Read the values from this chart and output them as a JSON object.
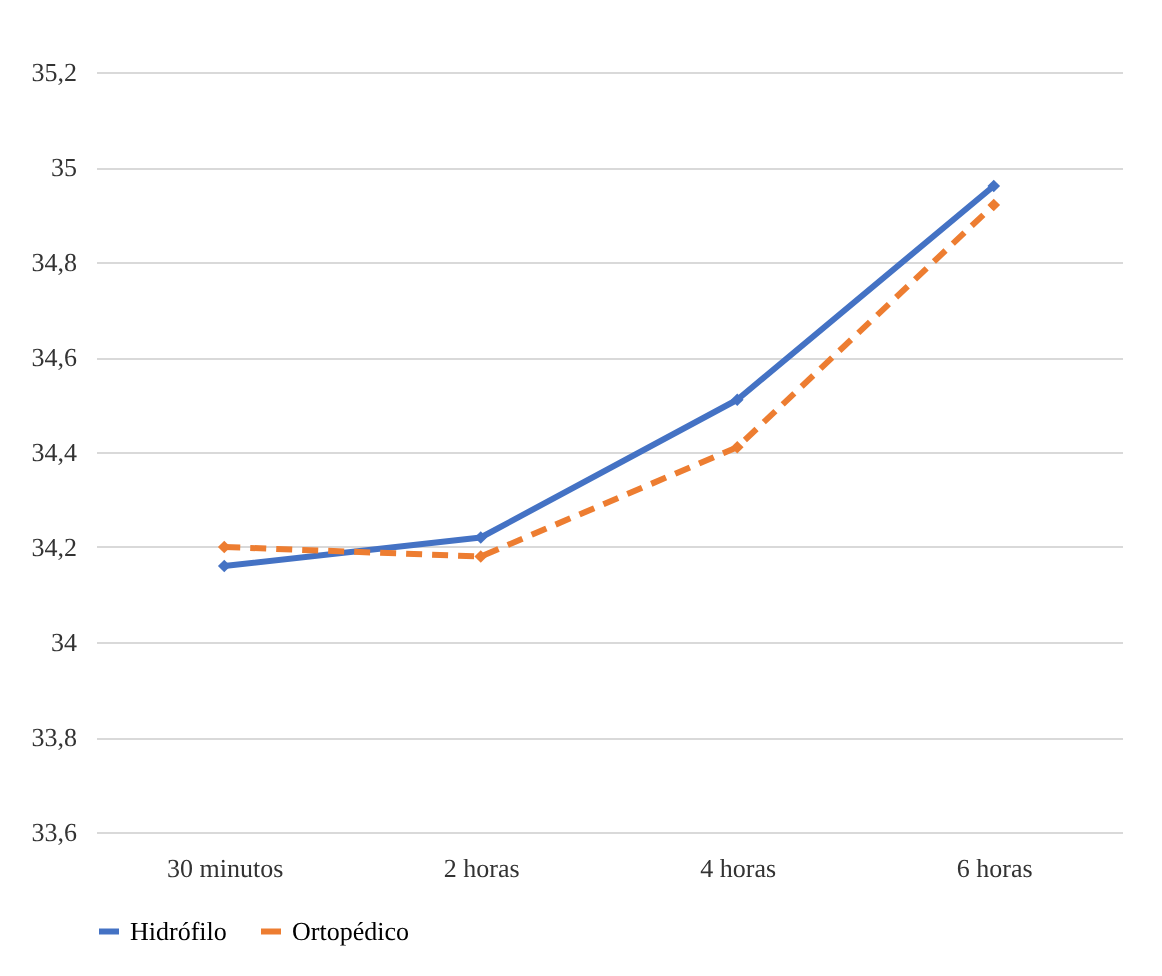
{
  "chart_data": {
    "type": "line",
    "categories": [
      "30 minutos",
      "2 horas",
      "4 horas",
      "6 horas"
    ],
    "series": [
      {
        "name": "Hidrófilo",
        "color": "#4472c4",
        "values": [
          34.16,
          34.22,
          34.51,
          34.96
        ],
        "line_style": "solid"
      },
      {
        "name": "Ortopédico",
        "color": "#ed7d31",
        "values": [
          34.2,
          34.18,
          34.41,
          34.92
        ],
        "line_style": "dashed"
      }
    ],
    "ylim": [
      33.6,
      35.2
    ],
    "yticks": [
      {
        "value": 33.6,
        "label": "33,6"
      },
      {
        "value": 33.8,
        "label": "33,8"
      },
      34,
      {
        "value": 34.2,
        "label": "34,2"
      },
      {
        "value": 34.4,
        "label": "34,4"
      },
      {
        "value": 34.6,
        "label": "34,6"
      },
      {
        "value": 34.8,
        "label": "34,8"
      },
      35,
      {
        "value": 35.2,
        "label": "35,2"
      }
    ],
    "grid": "y",
    "legend": "bottom",
    "marker": "diamond"
  }
}
